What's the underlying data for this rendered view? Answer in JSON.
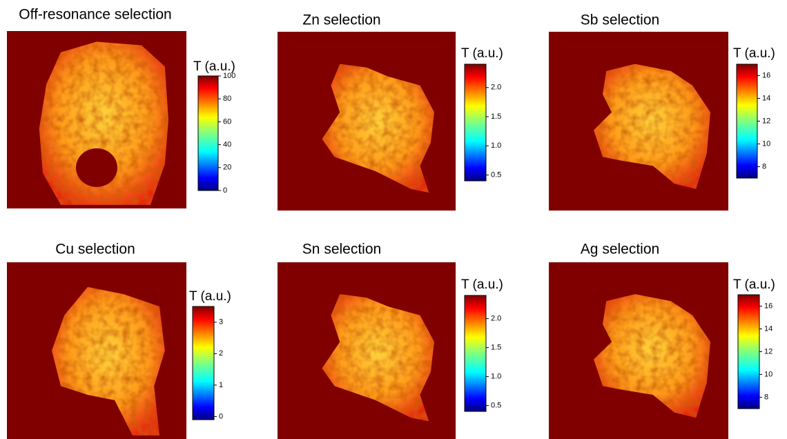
{
  "chart_data": [
    {
      "type": "heatmap",
      "title": "Off-resonance selection",
      "colorbar_label": "T (a.u.)",
      "colormap": "jet",
      "clim": [
        0,
        100
      ],
      "cticks": [
        0,
        20,
        40,
        60,
        80,
        100
      ]
    },
    {
      "type": "heatmap",
      "title": "Zn selection",
      "colorbar_label": "T (a.u.)",
      "colormap": "jet",
      "clim": [
        0.4,
        2.4
      ],
      "cticks": [
        0.5,
        {
          "value": 1,
          "label": "1.0"
        },
        1.5,
        {
          "value": 2,
          "label": "2.0"
        }
      ]
    },
    {
      "type": "heatmap",
      "title": "Sb selection",
      "colorbar_label": "T (a.u.)",
      "colormap": "jet",
      "clim": [
        7,
        17
      ],
      "cticks": [
        8,
        10,
        12,
        14,
        16
      ]
    },
    {
      "type": "heatmap",
      "title": "Cu selection",
      "colorbar_label": "T (a.u.)",
      "colormap": "jet",
      "clim": [
        -0.1,
        3.5
      ],
      "cticks": [
        0,
        1,
        2,
        3
      ]
    },
    {
      "type": "heatmap",
      "title": "Sn selection",
      "colorbar_label": "T (a.u.)",
      "colormap": "jet",
      "clim": [
        0.4,
        2.4
      ],
      "cticks": [
        0.5,
        {
          "value": 1,
          "label": "1.0"
        },
        1.5,
        {
          "value": 2,
          "label": "2.0"
        }
      ]
    },
    {
      "type": "heatmap",
      "title": "Ag selection",
      "colorbar_label": "T (a.u.)",
      "colormap": "jet",
      "clim": [
        7,
        17
      ],
      "cticks": [
        8,
        10,
        12,
        14,
        16
      ]
    }
  ]
}
